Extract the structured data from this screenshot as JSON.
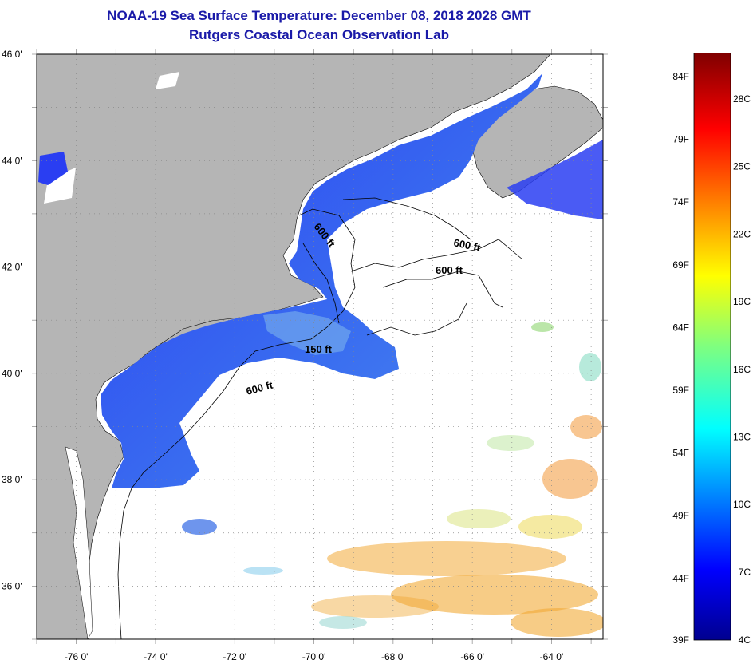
{
  "title": {
    "line1": "NOAA-19 Sea Surface Temperature:  December 08, 2018 2028 GMT",
    "line2": "Rutgers Coastal Ocean Observation Lab"
  },
  "map": {
    "lat_ticks": [
      {
        "value": 46,
        "label": "46 0'"
      },
      {
        "value": 44,
        "label": "44 0'"
      },
      {
        "value": 42,
        "label": "42 0'"
      },
      {
        "value": 40,
        "label": "40 0'"
      },
      {
        "value": 38,
        "label": "38 0'"
      },
      {
        "value": 36,
        "label": "36 0'"
      }
    ],
    "lon_ticks": [
      {
        "value": -76,
        "label": "-76 0'"
      },
      {
        "value": -74,
        "label": "-74 0'"
      },
      {
        "value": -72,
        "label": "-72 0'"
      },
      {
        "value": -70,
        "label": "-70 0'"
      },
      {
        "value": -68,
        "label": "-68 0'"
      },
      {
        "value": -66,
        "label": "-66 0'"
      },
      {
        "value": -64,
        "label": "-64 0'"
      }
    ],
    "contour_labels": [
      "600 ft",
      "600 ft",
      "600 ft",
      "150 ft",
      "600 ft"
    ],
    "colors": {
      "land": "#b5b5b5",
      "water_cold": "#2b3cf0",
      "water_mid": "#3f7ff0",
      "warm": "#f0a020",
      "grid": "#888888"
    }
  },
  "colorbar": {
    "f_labels": [
      "84F",
      "79F",
      "74F",
      "69F",
      "64F",
      "59F",
      "54F",
      "49F",
      "44F",
      "39F"
    ],
    "c_labels": [
      "28C",
      "25C",
      "22C",
      "19C",
      "16C",
      "13C",
      "10C",
      "7C",
      "4C"
    ]
  }
}
